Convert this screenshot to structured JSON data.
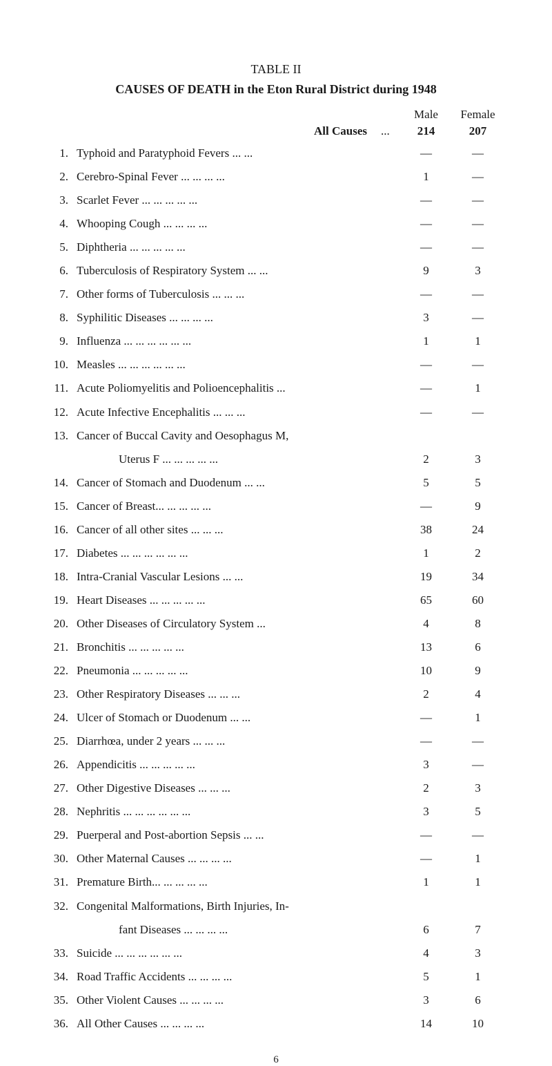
{
  "tableTitle": "TABLE II",
  "subtitle": "CAUSES OF DEATH in the Eton Rural District during 1948",
  "headers": {
    "male": "Male",
    "female": "Female"
  },
  "allCauses": {
    "label": "All Causes",
    "dots": "...",
    "male": "214",
    "female": "207"
  },
  "rows": [
    {
      "num": "1.",
      "label": "Typhoid and Paratyphoid Fevers    ...    ...",
      "male": "—",
      "female": "—"
    },
    {
      "num": "2.",
      "label": "Cerebro-Spinal Fever    ...    ...    ...    ...",
      "male": "1",
      "female": "—"
    },
    {
      "num": "3.",
      "label": "Scarlet Fever    ...    ...    ...    ...    ...",
      "male": "—",
      "female": "—"
    },
    {
      "num": "4.",
      "label": "Whooping Cough    ...    ...    ...    ...",
      "male": "—",
      "female": "—"
    },
    {
      "num": "5.",
      "label": "Diphtheria    ...    ...    ...    ...    ...",
      "male": "—",
      "female": "—"
    },
    {
      "num": "6.",
      "label": "Tuberculosis of Respiratory System ...    ...",
      "male": "9",
      "female": "3"
    },
    {
      "num": "7.",
      "label": "Other forms of Tuberculosis    ...    ...    ...",
      "male": "—",
      "female": "—"
    },
    {
      "num": "8.",
      "label": "Syphilitic Diseases    ...    ...    ...    ...",
      "male": "3",
      "female": "—"
    },
    {
      "num": "9.",
      "label": "Influenza ...    ...    ...    ...    ...    ...",
      "male": "1",
      "female": "1"
    },
    {
      "num": "10.",
      "label": "Measles    ...    ...    ...    ...    ...    ...",
      "male": "—",
      "female": "—"
    },
    {
      "num": "11.",
      "label": "Acute Poliomyelitis and Polioencephalitis    ...",
      "male": "—",
      "female": "1"
    },
    {
      "num": "12.",
      "label": "Acute Infective Encephalitis ...    ...    ...",
      "male": "—",
      "female": "—"
    },
    {
      "num": "13.",
      "label": "Cancer of Buccal Cavity and Oesophagus M,",
      "male": "",
      "female": ""
    },
    {
      "num": "",
      "label": "Uterus F    ...    ...    ...    ...    ...",
      "male": "2",
      "female": "3",
      "indented": true
    },
    {
      "num": "14.",
      "label": "Cancer of Stomach and Duodenum    ...    ...",
      "male": "5",
      "female": "5"
    },
    {
      "num": "15.",
      "label": "Cancer of Breast...    ...    ...    ...    ...",
      "male": "—",
      "female": "9"
    },
    {
      "num": "16.",
      "label": "Cancer of all other sites    ...    ...    ...",
      "male": "38",
      "female": "24"
    },
    {
      "num": "17.",
      "label": "Diabetes ...    ...    ...    ...    ...    ...",
      "male": "1",
      "female": "2"
    },
    {
      "num": "18.",
      "label": "Intra-Cranial Vascular Lesions    ...    ...",
      "male": "19",
      "female": "34"
    },
    {
      "num": "19.",
      "label": "Heart Diseases ...    ...    ...    ...    ...",
      "male": "65",
      "female": "60"
    },
    {
      "num": "20.",
      "label": "Other Diseases of Circulatory System    ...",
      "male": "4",
      "female": "8"
    },
    {
      "num": "21.",
      "label": "Bronchitis    ...    ...    ...    ...    ...",
      "male": "13",
      "female": "6"
    },
    {
      "num": "22.",
      "label": "Pneumonia    ...    ...    ...    ...    ...",
      "male": "10",
      "female": "9"
    },
    {
      "num": "23.",
      "label": "Other Respiratory Diseases    ...    ...    ...",
      "male": "2",
      "female": "4"
    },
    {
      "num": "24.",
      "label": "Ulcer of Stomach or Duodenum    ...    ...",
      "male": "—",
      "female": "1"
    },
    {
      "num": "25.",
      "label": "Diarrhœa, under 2 years    ...    ...    ...",
      "male": "—",
      "female": "—"
    },
    {
      "num": "26.",
      "label": "Appendicitis    ...    ...    ...    ...    ...",
      "male": "3",
      "female": "—"
    },
    {
      "num": "27.",
      "label": "Other Digestive Diseases    ...    ...    ...",
      "male": "2",
      "female": "3"
    },
    {
      "num": "28.",
      "label": "Nephritis ...    ...    ...    ...    ...    ...",
      "male": "3",
      "female": "5"
    },
    {
      "num": "29.",
      "label": "Puerperal and Post-abortion Sepsis    ...    ...",
      "male": "—",
      "female": "—"
    },
    {
      "num": "30.",
      "label": "Other Maternal Causes ...    ...    ...    ...",
      "male": "—",
      "female": "1"
    },
    {
      "num": "31.",
      "label": "Premature Birth...    ...    ...    ...    ...",
      "male": "1",
      "female": "1"
    },
    {
      "num": "32.",
      "label": "Congenital Malformations, Birth Injuries, In-",
      "male": "",
      "female": ""
    },
    {
      "num": "",
      "label": "fant Diseases    ...    ...    ...    ...",
      "male": "6",
      "female": "7",
      "indented": true
    },
    {
      "num": "33.",
      "label": "Suicide    ...    ...    ...    ...    ...    ...",
      "male": "4",
      "female": "3"
    },
    {
      "num": "34.",
      "label": "Road Traffic Accidents ...    ...    ...    ...",
      "male": "5",
      "female": "1"
    },
    {
      "num": "35.",
      "label": "Other Violent Causes    ...    ...    ...    ...",
      "male": "3",
      "female": "6"
    },
    {
      "num": "36.",
      "label": "All Other Causes    ...    ...    ...    ...",
      "male": "14",
      "female": "10"
    }
  ],
  "pageNumber": "6"
}
